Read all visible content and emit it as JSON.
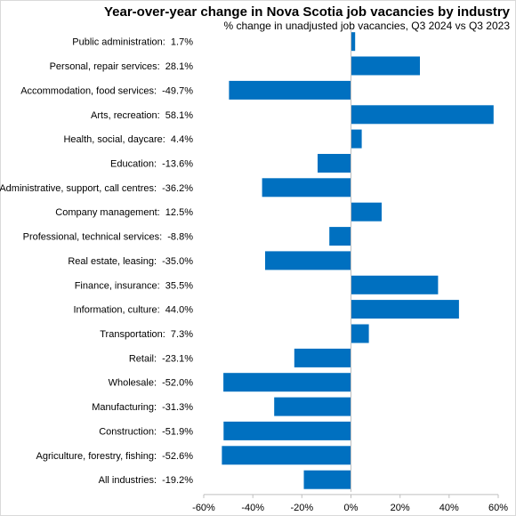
{
  "chart_data": {
    "type": "bar",
    "orientation": "horizontal",
    "title": "Year-over-year change in Nova Scotia job vacancies by industry",
    "subtitle": "% change in unadjusted job vacancies, Q3 2024 vs Q3 2023",
    "categories": [
      "Public administration:  1.7%",
      "Personal, repair services:  28.1%",
      "Accommodation, food services:  -49.7%",
      "Arts, recreation:  58.1%",
      "Health, social, daycare:  4.4%",
      "Education:  -13.6%",
      "Administrative, support, call centres:  -36.2%",
      "Company management:  12.5%",
      "Professional, technical services:  -8.8%",
      "Real estate, leasing:  -35.0%",
      "Finance, insurance:  35.5%",
      "Information, culture:  44.0%",
      "Transportation:  7.3%",
      "Retail:  -23.1%",
      "Wholesale:  -52.0%",
      "Manufacturing:  -31.3%",
      "Construction:  -51.9%",
      "Agriculture, forestry, fishing:  -52.6%",
      "All industries:  -19.2%"
    ],
    "values": [
      1.7,
      28.1,
      -49.7,
      58.1,
      4.4,
      -13.6,
      -36.2,
      12.5,
      -8.8,
      -35.0,
      35.5,
      44.0,
      7.3,
      -23.1,
      -52.0,
      -31.3,
      -51.9,
      -52.6,
      -19.2
    ],
    "xlim": [
      -60,
      60
    ],
    "xticks": [
      -60,
      -40,
      -20,
      0,
      20,
      40,
      60
    ],
    "xtick_labels": [
      "-60%",
      "-40%",
      "-20%",
      "0%",
      "20%",
      "40%",
      "60%"
    ],
    "bar_color": "#0070C0",
    "grid": false,
    "legend": "none"
  }
}
